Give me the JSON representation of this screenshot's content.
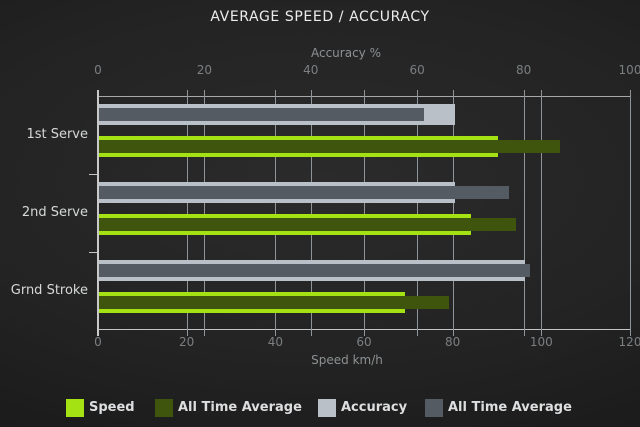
{
  "title": "AVERAGE SPEED / ACCURACY",
  "axes": {
    "top": {
      "label": "Accuracy %",
      "ticks": [
        0,
        20,
        40,
        60,
        80,
        100
      ],
      "max": 100
    },
    "bottom": {
      "label": "Speed km/h",
      "ticks": [
        0,
        20,
        40,
        60,
        80,
        100,
        120
      ],
      "max": 120
    }
  },
  "legend": [
    {
      "label": "Speed",
      "color": "#a5e214"
    },
    {
      "label": "All Time Average",
      "color": "#3f540d"
    },
    {
      "label": "Accuracy",
      "color": "#b9c0c7"
    },
    {
      "label": "All Time Average",
      "color": "#555b63"
    }
  ],
  "chart_data": {
    "type": "bar",
    "orientation": "horizontal",
    "title": "AVERAGE SPEED / ACCURACY",
    "categories": [
      "1st Serve",
      "2nd Serve",
      "Grnd Stroke"
    ],
    "series": [
      {
        "name": "Speed",
        "axis": "bottom",
        "unit": "km/h",
        "color": "#a5e214",
        "values": [
          90,
          84,
          69
        ]
      },
      {
        "name": "All Time Average",
        "axis": "bottom",
        "unit": "km/h",
        "color": "#3f540d",
        "values": [
          104,
          94,
          79
        ]
      },
      {
        "name": "Accuracy",
        "axis": "top",
        "unit": "%",
        "color": "#b9c0c7",
        "values": [
          67,
          67,
          80
        ]
      },
      {
        "name": "All Time Average",
        "axis": "top",
        "unit": "%",
        "color": "#555b63",
        "values": [
          61,
          77,
          81
        ]
      }
    ],
    "xlim_top": [
      0,
      100
    ],
    "xlim_bottom": [
      0,
      120
    ],
    "grid": true,
    "legend_position": "bottom"
  },
  "colors": {
    "background": "#232323",
    "speed": "#a5e214",
    "speed_all_time": "#3f540d",
    "accuracy": "#b9c0c7",
    "accuracy_all_time": "#555b63",
    "gridline": "#8f9499",
    "text": "#ececec"
  }
}
